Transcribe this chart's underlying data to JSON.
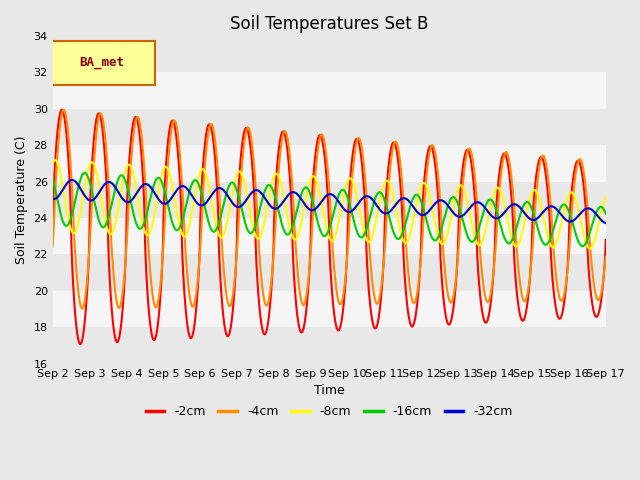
{
  "title": "Soil Temperatures Set B",
  "xlabel": "Time",
  "ylabel": "Soil Temperature (C)",
  "ylim": [
    16,
    34
  ],
  "n_days": 15,
  "xtick_labels": [
    "Sep 2",
    "Sep 3",
    "Sep 4",
    "Sep 5",
    "Sep 6",
    "Sep 7",
    "Sep 8",
    "Sep 9",
    "Sep 10",
    "Sep 11",
    "Sep 12",
    "Sep 13",
    "Sep 14",
    "Sep 15",
    "Sep 16",
    "Sep 17"
  ],
  "ytick_values": [
    16,
    18,
    20,
    22,
    24,
    26,
    28,
    30,
    32,
    34
  ],
  "series_labels": [
    "-2cm",
    "-4cm",
    "-8cm",
    "-16cm",
    "-32cm"
  ],
  "series_colors": [
    "#ff0000",
    "#ff8c00",
    "#ffff00",
    "#00cc00",
    "#0000cd"
  ],
  "bg_color": "#e8e8e8",
  "band_colors": [
    "#e8e8e8",
    "#f5f5f5"
  ],
  "ba_label": "BA_met",
  "ba_box_facecolor": "#ffff99",
  "ba_box_edgecolor": "#cc6600",
  "ba_text_color": "#8b0000",
  "series_params": {
    "-2cm": {
      "mean_s": 23.5,
      "mean_e": 22.8,
      "amp_s": 6.5,
      "amp_e": 4.2,
      "phase": 0.0,
      "sharp": 1.5
    },
    "-4cm": {
      "mean_s": 24.5,
      "mean_e": 23.3,
      "amp_s": 5.5,
      "amp_e": 3.8,
      "phase": -0.05,
      "sharp": 1.2
    },
    "-8cm": {
      "mean_s": 25.2,
      "mean_e": 23.8,
      "amp_s": 2.0,
      "amp_e": 1.5,
      "phase": 0.18,
      "sharp": 1.0
    },
    "-16cm": {
      "mean_s": 25.1,
      "mean_e": 23.5,
      "amp_s": 1.5,
      "amp_e": 1.1,
      "phase": 0.38,
      "sharp": 1.0
    },
    "-32cm": {
      "mean_s": 25.6,
      "mean_e": 24.1,
      "amp_s": 0.55,
      "amp_e": 0.38,
      "phase": 0.72,
      "sharp": 1.0
    }
  }
}
